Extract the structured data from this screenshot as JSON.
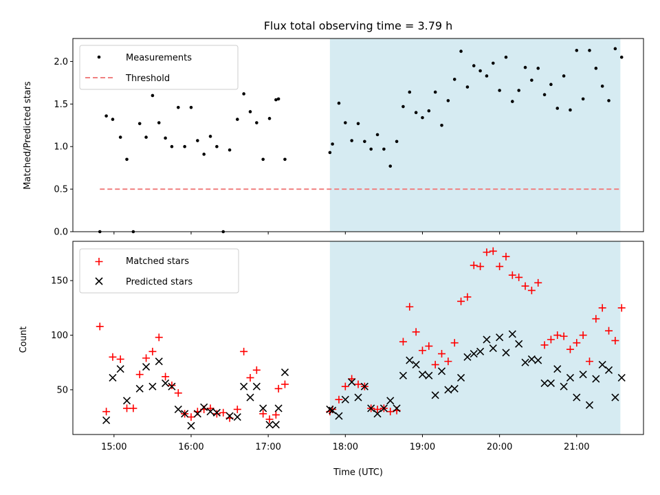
{
  "title": "Flux total observing time = 3.79 h",
  "highlight_color": "#add8e6",
  "colors": {
    "measurements": "#000000",
    "threshold": "#f08080",
    "matched": "#ff0000",
    "predicted": "#000000"
  },
  "chart_data": [
    {
      "type": "scatter",
      "ylabel": "Matched/Predicted stars",
      "ylim": [
        0,
        2.27
      ],
      "yticks": [
        "0.0",
        "0.5",
        "1.0",
        "1.5",
        "2.0"
      ],
      "xlim": [
        "14:28",
        "21:52"
      ],
      "grid": false,
      "legend_position": "top-left",
      "highlight_span": [
        "17:48",
        "21:34"
      ],
      "threshold": {
        "name": "Threshold",
        "value": 0.5,
        "x_range": [
          "14:49",
          "21:34"
        ]
      },
      "series": [
        {
          "name": "Measurements",
          "points": [
            [
              "14:49",
              0.0
            ],
            [
              "14:54",
              1.36
            ],
            [
              "14:59",
              1.32
            ],
            [
              "15:05",
              1.11
            ],
            [
              "15:10",
              0.85
            ],
            [
              "15:15",
              0.0
            ],
            [
              "15:20",
              1.27
            ],
            [
              "15:25",
              1.11
            ],
            [
              "15:30",
              1.6
            ],
            [
              "15:35",
              1.28
            ],
            [
              "15:40",
              1.1
            ],
            [
              "15:45",
              1.0
            ],
            [
              "15:50",
              1.46
            ],
            [
              "15:55",
              1.0
            ],
            [
              "16:00",
              1.46
            ],
            [
              "16:05",
              1.07
            ],
            [
              "16:10",
              0.91
            ],
            [
              "16:15",
              1.12
            ],
            [
              "16:20",
              1.0
            ],
            [
              "16:25",
              0.0
            ],
            [
              "16:30",
              0.96
            ],
            [
              "16:36",
              1.32
            ],
            [
              "16:41",
              1.62
            ],
            [
              "16:46",
              1.41
            ],
            [
              "16:51",
              1.28
            ],
            [
              "16:56",
              0.85
            ],
            [
              "17:01",
              1.33
            ],
            [
              "17:06",
              1.55
            ],
            [
              "17:08",
              1.56
            ],
            [
              "17:13",
              0.85
            ],
            [
              "17:48",
              0.93
            ],
            [
              "17:50",
              1.03
            ],
            [
              "17:55",
              1.51
            ],
            [
              "18:00",
              1.28
            ],
            [
              "18:05",
              1.07
            ],
            [
              "18:10",
              1.27
            ],
            [
              "18:15",
              1.06
            ],
            [
              "18:20",
              0.97
            ],
            [
              "18:25",
              1.14
            ],
            [
              "18:30",
              0.97
            ],
            [
              "18:35",
              0.77
            ],
            [
              "18:40",
              1.06
            ],
            [
              "18:45",
              1.47
            ],
            [
              "18:50",
              1.64
            ],
            [
              "18:55",
              1.4
            ],
            [
              "19:00",
              1.34
            ],
            [
              "19:05",
              1.42
            ],
            [
              "19:10",
              1.64
            ],
            [
              "19:15",
              1.25
            ],
            [
              "19:20",
              1.54
            ],
            [
              "19:25",
              1.79
            ],
            [
              "19:30",
              2.12
            ],
            [
              "19:35",
              1.7
            ],
            [
              "19:40",
              1.95
            ],
            [
              "19:45",
              1.89
            ],
            [
              "19:50",
              1.83
            ],
            [
              "19:55",
              1.98
            ],
            [
              "20:00",
              1.66
            ],
            [
              "20:05",
              2.05
            ],
            [
              "20:10",
              1.53
            ],
            [
              "20:15",
              1.66
            ],
            [
              "20:20",
              1.93
            ],
            [
              "20:25",
              1.78
            ],
            [
              "20:30",
              1.92
            ],
            [
              "20:35",
              1.61
            ],
            [
              "20:40",
              1.73
            ],
            [
              "20:45",
              1.45
            ],
            [
              "20:50",
              1.83
            ],
            [
              "20:55",
              1.43
            ],
            [
              "21:00",
              2.13
            ],
            [
              "21:05",
              1.56
            ],
            [
              "21:10",
              2.13
            ],
            [
              "21:15",
              1.92
            ],
            [
              "21:20",
              1.71
            ],
            [
              "21:25",
              1.54
            ],
            [
              "21:30",
              2.15
            ],
            [
              "21:35",
              2.05
            ]
          ]
        }
      ]
    },
    {
      "type": "scatter",
      "xlabel": "Time (UTC)",
      "ylabel": "Count",
      "ylim": [
        9,
        186
      ],
      "yticks": [
        "50",
        "100",
        "150"
      ],
      "xticks": [
        "15:00",
        "16:00",
        "17:00",
        "18:00",
        "19:00",
        "20:00",
        "21:00"
      ],
      "xlim": [
        "14:28",
        "21:52"
      ],
      "grid": false,
      "legend_position": "top-left",
      "highlight_span": [
        "17:48",
        "21:34"
      ],
      "series": [
        {
          "name": "Matched stars",
          "marker": "+",
          "points": [
            [
              "14:49",
              108
            ],
            [
              "14:54",
              30
            ],
            [
              "14:59",
              80
            ],
            [
              "15:05",
              78
            ],
            [
              "15:10",
              33
            ],
            [
              "15:15",
              33
            ],
            [
              "15:20",
              64
            ],
            [
              "15:25",
              79
            ],
            [
              "15:30",
              85
            ],
            [
              "15:35",
              98
            ],
            [
              "15:40",
              62
            ],
            [
              "15:45",
              54
            ],
            [
              "15:50",
              47
            ],
            [
              "15:55",
              28
            ],
            [
              "16:00",
              25
            ],
            [
              "16:05",
              30
            ],
            [
              "16:10",
              32
            ],
            [
              "16:15",
              33
            ],
            [
              "16:20",
              28
            ],
            [
              "16:25",
              29
            ],
            [
              "16:30",
              24
            ],
            [
              "16:36",
              32
            ],
            [
              "16:41",
              85
            ],
            [
              "16:46",
              61
            ],
            [
              "16:51",
              68
            ],
            [
              "16:56",
              28
            ],
            [
              "17:01",
              23
            ],
            [
              "17:06",
              27
            ],
            [
              "17:08",
              51
            ],
            [
              "17:13",
              55
            ],
            [
              "17:48",
              30
            ],
            [
              "17:50",
              32
            ],
            [
              "17:55",
              41
            ],
            [
              "18:00",
              53
            ],
            [
              "18:05",
              60
            ],
            [
              "18:10",
              55
            ],
            [
              "18:15",
              53
            ],
            [
              "18:20",
              33
            ],
            [
              "18:25",
              32
            ],
            [
              "18:30",
              33
            ],
            [
              "18:35",
              30
            ],
            [
              "18:40",
              31
            ],
            [
              "18:45",
              94
            ],
            [
              "18:50",
              126
            ],
            [
              "18:55",
              103
            ],
            [
              "19:00",
              86
            ],
            [
              "19:05",
              90
            ],
            [
              "19:10",
              73
            ],
            [
              "19:15",
              83
            ],
            [
              "19:20",
              76
            ],
            [
              "19:25",
              93
            ],
            [
              "19:30",
              131
            ],
            [
              "19:35",
              135
            ],
            [
              "19:40",
              164
            ],
            [
              "19:45",
              163
            ],
            [
              "19:50",
              176
            ],
            [
              "19:55",
              177
            ],
            [
              "20:00",
              163
            ],
            [
              "20:05",
              172
            ],
            [
              "20:10",
              155
            ],
            [
              "20:15",
              153
            ],
            [
              "20:20",
              145
            ],
            [
              "20:25",
              141
            ],
            [
              "20:30",
              148
            ],
            [
              "20:35",
              91
            ],
            [
              "20:40",
              96
            ],
            [
              "20:45",
              100
            ],
            [
              "20:50",
              99
            ],
            [
              "20:55",
              87
            ],
            [
              "21:00",
              93
            ],
            [
              "21:05",
              100
            ],
            [
              "21:10",
              76
            ],
            [
              "21:15",
              115
            ],
            [
              "21:20",
              125
            ],
            [
              "21:25",
              104
            ],
            [
              "21:30",
              95
            ],
            [
              "21:35",
              125
            ]
          ]
        },
        {
          "name": "Predicted stars",
          "marker": "x",
          "points": [
            [
              "14:54",
              22
            ],
            [
              "14:59",
              61
            ],
            [
              "15:05",
              69
            ],
            [
              "15:10",
              40
            ],
            [
              "15:20",
              51
            ],
            [
              "15:25",
              71
            ],
            [
              "15:30",
              53
            ],
            [
              "15:35",
              76
            ],
            [
              "15:40",
              56
            ],
            [
              "15:45",
              53
            ],
            [
              "15:50",
              32
            ],
            [
              "15:55",
              28
            ],
            [
              "16:00",
              17
            ],
            [
              "16:05",
              28
            ],
            [
              "16:10",
              34
            ],
            [
              "16:15",
              30
            ],
            [
              "16:20",
              29
            ],
            [
              "16:30",
              26
            ],
            [
              "16:36",
              25
            ],
            [
              "16:41",
              53
            ],
            [
              "16:46",
              43
            ],
            [
              "16:51",
              53
            ],
            [
              "16:56",
              33
            ],
            [
              "17:01",
              18
            ],
            [
              "17:06",
              18
            ],
            [
              "17:08",
              33
            ],
            [
              "17:13",
              66
            ],
            [
              "17:48",
              32
            ],
            [
              "17:50",
              31
            ],
            [
              "17:55",
              26
            ],
            [
              "18:00",
              41
            ],
            [
              "18:05",
              57
            ],
            [
              "18:10",
              43
            ],
            [
              "18:15",
              53
            ],
            [
              "18:20",
              33
            ],
            [
              "18:25",
              28
            ],
            [
              "18:30",
              33
            ],
            [
              "18:35",
              40
            ],
            [
              "18:40",
              33
            ],
            [
              "18:45",
              63
            ],
            [
              "18:50",
              77
            ],
            [
              "18:55",
              73
            ],
            [
              "19:00",
              64
            ],
            [
              "19:05",
              63
            ],
            [
              "19:10",
              45
            ],
            [
              "19:15",
              67
            ],
            [
              "19:20",
              50
            ],
            [
              "19:25",
              51
            ],
            [
              "19:30",
              61
            ],
            [
              "19:35",
              80
            ],
            [
              "19:40",
              83
            ],
            [
              "19:45",
              85
            ],
            [
              "19:50",
              96
            ],
            [
              "19:55",
              88
            ],
            [
              "20:00",
              98
            ],
            [
              "20:05",
              84
            ],
            [
              "20:10",
              101
            ],
            [
              "20:15",
              92
            ],
            [
              "20:20",
              75
            ],
            [
              "20:25",
              78
            ],
            [
              "20:30",
              77
            ],
            [
              "20:35",
              56
            ],
            [
              "20:40",
              56
            ],
            [
              "20:45",
              69
            ],
            [
              "20:50",
              53
            ],
            [
              "20:55",
              61
            ],
            [
              "21:00",
              43
            ],
            [
              "21:05",
              64
            ],
            [
              "21:10",
              36
            ],
            [
              "21:15",
              60
            ],
            [
              "21:20",
              73
            ],
            [
              "21:25",
              68
            ],
            [
              "21:30",
              43
            ],
            [
              "21:35",
              61
            ]
          ]
        }
      ]
    }
  ]
}
